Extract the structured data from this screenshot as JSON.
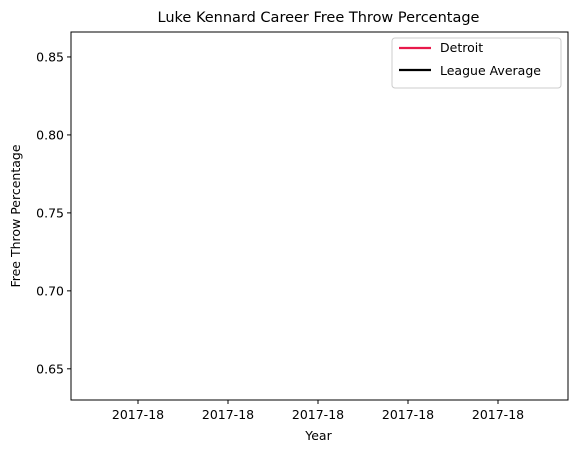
{
  "chart_data": {
    "type": "line",
    "title": "Luke Kennard  Career Free Throw Percentage",
    "xlabel": "Year",
    "ylabel": "Free Throw Percentage",
    "x_tick_labels": [
      "2017-18",
      "2017-18",
      "2017-18",
      "2017-18",
      "2017-18"
    ],
    "y_ticks": [
      0.65,
      0.7,
      0.75,
      0.8,
      0.85
    ],
    "y_tick_labels": [
      "0.65",
      "0.70",
      "0.75",
      "0.80",
      "0.85"
    ],
    "ylim": [
      0.63,
      0.866
    ],
    "grid": false,
    "legend_position": "top-right",
    "series": [
      {
        "name": "Detroit",
        "color": "#e8194b",
        "x": [
          "2017-18"
        ],
        "values": [
          null
        ]
      },
      {
        "name": "League Average",
        "color": "#000000",
        "x": [
          "2017-18"
        ],
        "values": [
          null
        ]
      }
    ]
  }
}
